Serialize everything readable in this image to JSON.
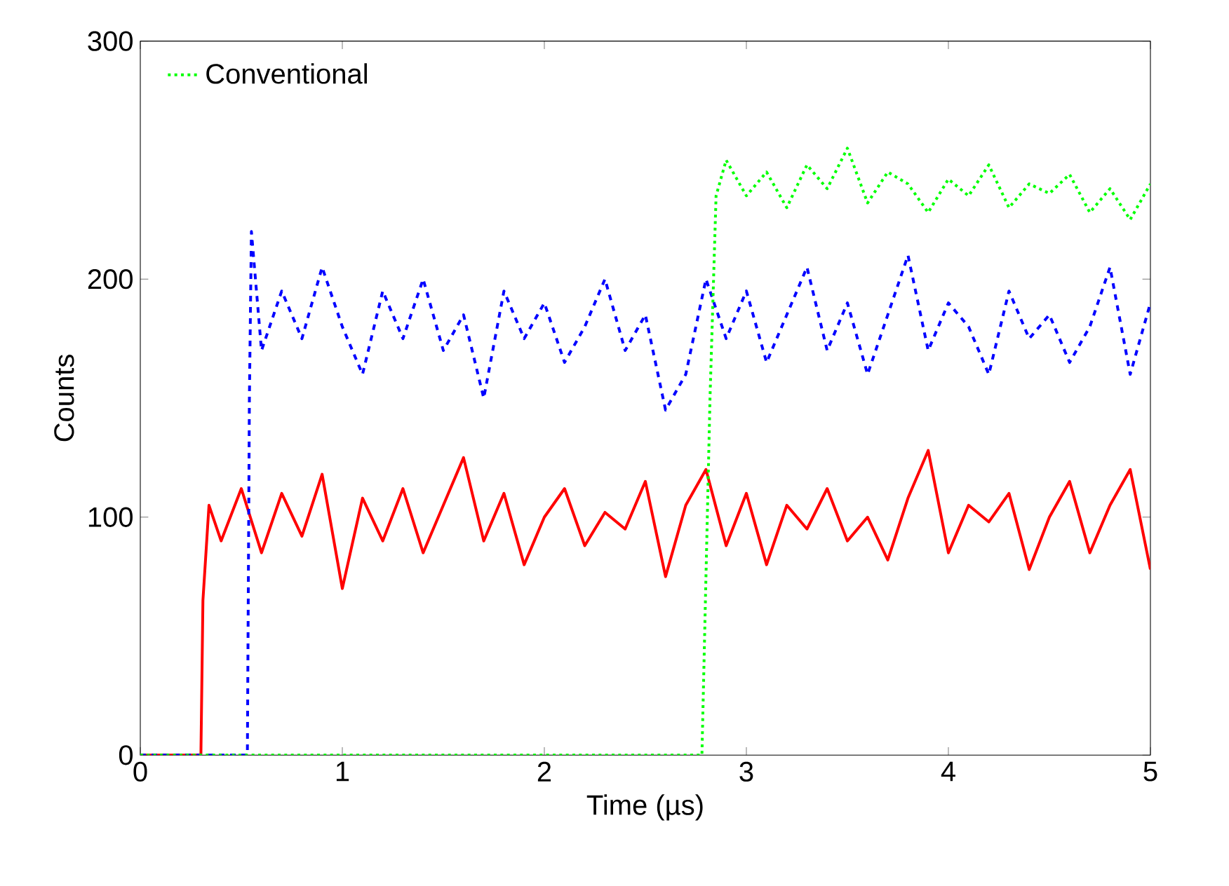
{
  "chart_data": {
    "type": "line",
    "xlabel": "Time (µs)",
    "ylabel": "Counts",
    "xlim": [
      0,
      5
    ],
    "ylim": [
      0,
      300
    ],
    "xticks": [
      0,
      1,
      2,
      3,
      4,
      5
    ],
    "yticks": [
      0,
      100,
      200,
      300
    ],
    "legend": "top left",
    "marker": "none",
    "series": [
      {
        "color": "#ff0000",
        "line_style": "solid",
        "x": [
          0,
          0.3,
          0.31,
          0.34,
          0.4,
          0.5,
          0.6,
          0.7,
          0.8,
          0.9,
          1.0,
          1.1,
          1.2,
          1.3,
          1.4,
          1.5,
          1.6,
          1.7,
          1.8,
          1.9,
          2.0,
          2.1,
          2.2,
          2.3,
          2.4,
          2.5,
          2.6,
          2.7,
          2.8,
          2.9,
          3.0,
          3.1,
          3.2,
          3.3,
          3.4,
          3.5,
          3.6,
          3.7,
          3.8,
          3.9,
          4.0,
          4.1,
          4.2,
          4.3,
          4.4,
          4.5,
          4.6,
          4.7,
          4.8,
          4.9,
          5.0
        ],
        "values": [
          0,
          0,
          65,
          105,
          90,
          112,
          85,
          110,
          92,
          118,
          70,
          108,
          90,
          112,
          85,
          105,
          125,
          90,
          110,
          80,
          100,
          112,
          88,
          102,
          95,
          115,
          75,
          105,
          120,
          88,
          110,
          80,
          105,
          95,
          112,
          90,
          100,
          82,
          108,
          128,
          85,
          105,
          98,
          110,
          78,
          100,
          115,
          85,
          105,
          120,
          78
        ]
      },
      {
        "color": "#0000ff",
        "line_style": "dashed",
        "x": [
          0,
          0.53,
          0.54,
          0.55,
          0.6,
          0.7,
          0.8,
          0.9,
          1.0,
          1.1,
          1.2,
          1.3,
          1.4,
          1.5,
          1.6,
          1.7,
          1.8,
          1.9,
          2.0,
          2.1,
          2.2,
          2.3,
          2.4,
          2.5,
          2.6,
          2.7,
          2.8,
          2.9,
          3.0,
          3.1,
          3.2,
          3.3,
          3.4,
          3.5,
          3.6,
          3.7,
          3.8,
          3.9,
          4.0,
          4.1,
          4.2,
          4.3,
          4.4,
          4.5,
          4.6,
          4.7,
          4.8,
          4.9,
          5.0
        ],
        "values": [
          0,
          0,
          150,
          220,
          170,
          195,
          175,
          205,
          180,
          160,
          195,
          175,
          200,
          170,
          185,
          150,
          195,
          175,
          190,
          165,
          180,
          200,
          170,
          185,
          145,
          160,
          200,
          175,
          195,
          165,
          185,
          205,
          170,
          190,
          160,
          185,
          210,
          170,
          190,
          180,
          160,
          195,
          175,
          185,
          165,
          180,
          205,
          160,
          190
        ]
      },
      {
        "name": "Conventional",
        "color": "#00ff00",
        "line_style": "dotted",
        "x": [
          0,
          2.78,
          2.82,
          2.85,
          2.9,
          3.0,
          3.1,
          3.2,
          3.3,
          3.4,
          3.5,
          3.6,
          3.7,
          3.8,
          3.9,
          4.0,
          4.1,
          4.2,
          4.3,
          4.4,
          4.5,
          4.6,
          4.7,
          4.8,
          4.9,
          5.0
        ],
        "values": [
          0,
          0,
          150,
          235,
          250,
          235,
          245,
          230,
          248,
          238,
          255,
          232,
          245,
          240,
          228,
          242,
          235,
          248,
          230,
          240,
          236,
          244,
          228,
          238,
          225,
          240
        ]
      }
    ]
  }
}
